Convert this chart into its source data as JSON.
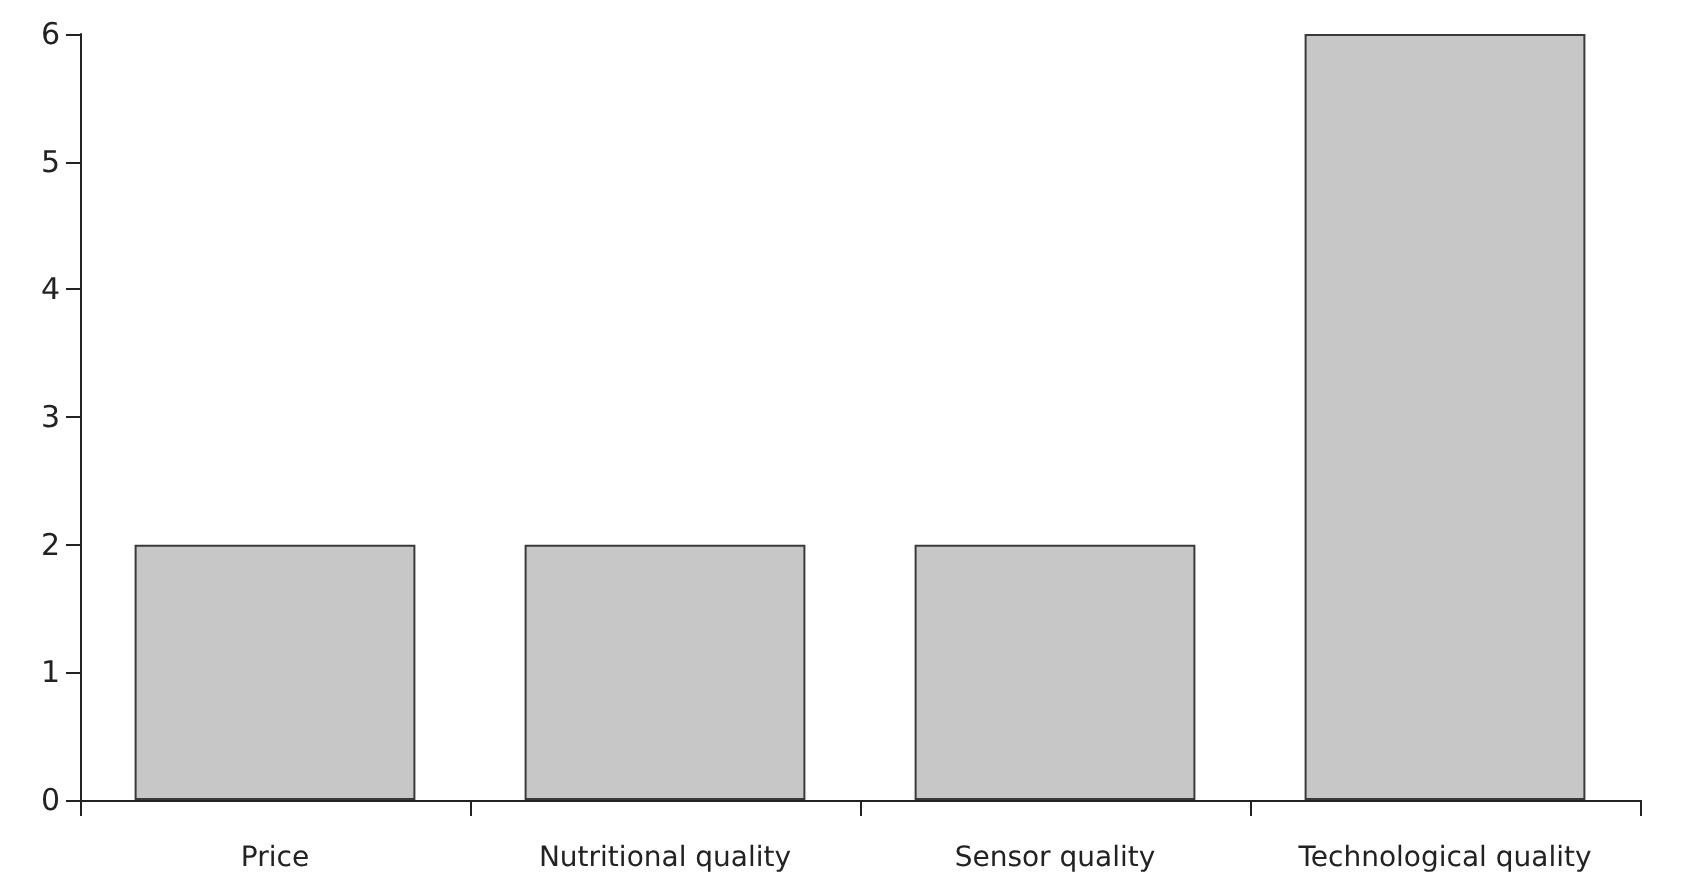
{
  "chart_data": {
    "type": "bar",
    "categories": [
      "Price",
      "Nutritional quality",
      "Sensor quality",
      "Technological quality"
    ],
    "values": [
      2,
      2,
      2,
      6
    ],
    "color": "#c6c7c6",
    "ylim": [
      0,
      6
    ],
    "yticks": [
      0,
      1,
      2,
      3,
      4,
      5,
      6
    ],
    "grid": false
  }
}
